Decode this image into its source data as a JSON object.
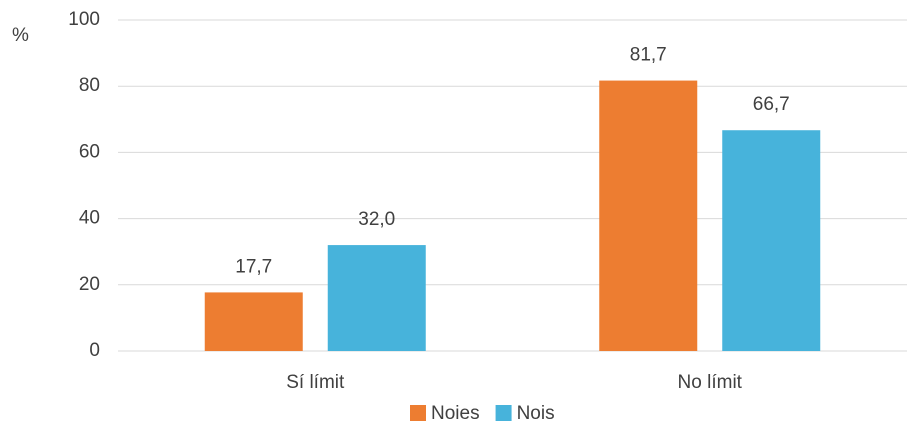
{
  "chart_data": {
    "type": "bar",
    "y_label": "%",
    "categories": [
      "Sí límit",
      "No límit"
    ],
    "series": [
      {
        "name": "Noies",
        "color": "#ED7D31",
        "values": [
          17.7,
          81.7
        ],
        "value_labels": [
          "17,7",
          "81,7"
        ]
      },
      {
        "name": "Nois",
        "color": "#47B3DB",
        "values": [
          32.0,
          66.7
        ],
        "value_labels": [
          "32,0",
          "66,7"
        ]
      }
    ],
    "ylim": [
      0,
      100
    ],
    "yticks": [
      0,
      20,
      40,
      60,
      80,
      100
    ],
    "grid": true,
    "legend": "bottom"
  }
}
